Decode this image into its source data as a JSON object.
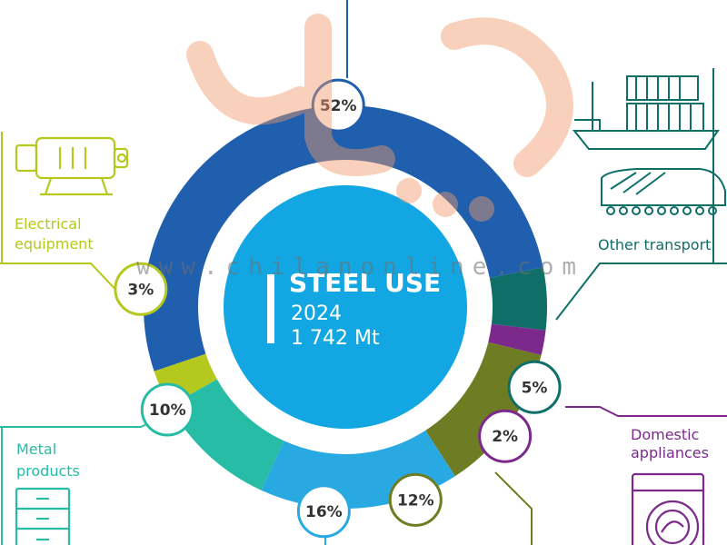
{
  "colors": {
    "construction": "#1f5fae",
    "other_transport": "#0f6e68",
    "domestic_appliances": "#7b2a8c",
    "automotive": "#6e7d24",
    "machinery": "#29a9e1",
    "metal_products": "#27bca6",
    "electrical_equipment": "#b5c81e",
    "center": "#12a7e3"
  },
  "center": {
    "title": "STEEL USE",
    "year": "2024",
    "total": "1 742 Mt"
  },
  "labels": {
    "other_transport": "Other transport",
    "electrical_equipment_line1": "Electrical",
    "electrical_equipment_line2": "equipment",
    "domestic_appliances_line1": "Domestic",
    "domestic_appliances_line2": "appliances",
    "metal_products_line1": "Metal",
    "metal_products_line2": "products"
  },
  "watermark": {
    "text": "www.chilanonline.com"
  },
  "chart_data": {
    "type": "pie",
    "title": "STEEL USE",
    "subtitle": "2024",
    "total": "1 742 Mt",
    "unit": "%",
    "categories": [
      "",
      "Other transport",
      "Domestic appliances",
      "",
      "",
      "Metal products",
      "Electrical equipment"
    ],
    "values": [
      52,
      5,
      2,
      12,
      16,
      10,
      3
    ],
    "value_labels": [
      "52%",
      "5%",
      "2%",
      "12%",
      "16%",
      "10%",
      "3%"
    ],
    "color_keys": [
      "construction",
      "other_transport",
      "domestic_appliances",
      "automotive",
      "machinery",
      "metal_products",
      "electrical_equipment"
    ]
  }
}
